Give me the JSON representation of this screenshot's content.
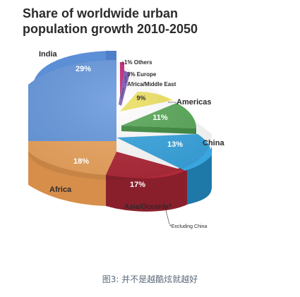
{
  "chart_data": {
    "type": "pie",
    "title_line1": "Share of worldwide urban",
    "title_line2": "population growth 2010-2050",
    "slices": [
      {
        "name": "India",
        "value": 29,
        "label": "29%",
        "color": "#5b8fd6"
      },
      {
        "name": "Others",
        "value": 1,
        "label": "1% Others",
        "color": "#c62a7a"
      },
      {
        "name": "Europe",
        "value": 3,
        "label": "3% Europe",
        "color": "#7a5ab5"
      },
      {
        "name": "Africa/Middle East",
        "value": 9,
        "label": "9%",
        "color": "#ede062"
      },
      {
        "name": "Americas",
        "value": 11,
        "label": "11%",
        "color": "#5aa85a"
      },
      {
        "name": "China",
        "value": 13,
        "label": "13%",
        "color": "#3aa6e0"
      },
      {
        "name": "Asia/Oceania*",
        "value": 17,
        "label": "17%",
        "color": "#b02a3a"
      },
      {
        "name": "Africa",
        "value": 18,
        "label": "18%",
        "color": "#eda660"
      }
    ],
    "annotations": {
      "india": "India",
      "others": "1% Others",
      "europe": "3% Europe",
      "africa_middle_east": "Africa/Middle East",
      "americas": "Americas",
      "china": "China",
      "asia_oceania": "Asia/Oceania*",
      "africa": "Africa",
      "footnote": "*Excluding China"
    }
  },
  "caption": "图3: 并不是越酷炫就越好"
}
